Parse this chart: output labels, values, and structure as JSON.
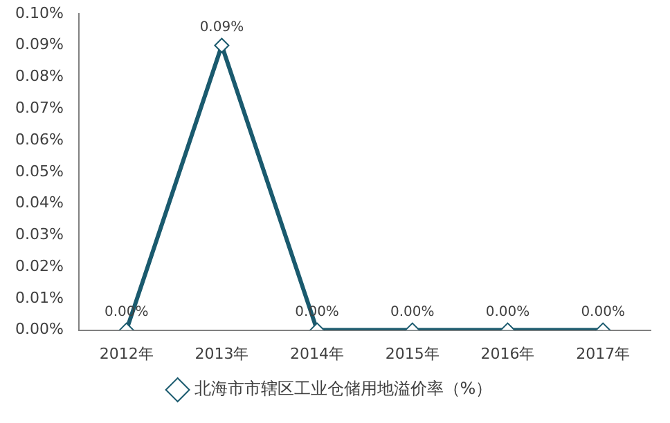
{
  "chart_data": {
    "type": "line",
    "categories": [
      "2012年",
      "2013年",
      "2014年",
      "2015年",
      "2016年",
      "2017年"
    ],
    "series": [
      {
        "name": "北海市市辖区工业仓储用地溢价率（%）",
        "color": "#1a5a6e",
        "values": [
          0,
          0.09,
          0,
          0,
          0,
          0
        ],
        "value_labels": [
          "0.00%",
          "0.09%",
          "0.00%",
          "0.00%",
          "0.00%",
          "0.00%"
        ]
      }
    ],
    "ylim": [
      0,
      0.1
    ],
    "yticks": [
      {
        "value": 0,
        "label": "0.00%"
      },
      {
        "value": 0.01,
        "label": "0.01%"
      },
      {
        "value": 0.02,
        "label": "0.02%"
      },
      {
        "value": 0.03,
        "label": "0.03%"
      },
      {
        "value": 0.04,
        "label": "0.04%"
      },
      {
        "value": 0.05,
        "label": "0.05%"
      },
      {
        "value": 0.06,
        "label": "0.06%"
      },
      {
        "value": 0.07,
        "label": "0.07%"
      },
      {
        "value": 0.08,
        "label": "0.08%"
      },
      {
        "value": 0.09,
        "label": "0.09%"
      },
      {
        "value": 0.1,
        "label": "0.10%"
      }
    ],
    "grid": false,
    "legend": "bottom",
    "marker": "diamond",
    "line_style": "solid"
  }
}
